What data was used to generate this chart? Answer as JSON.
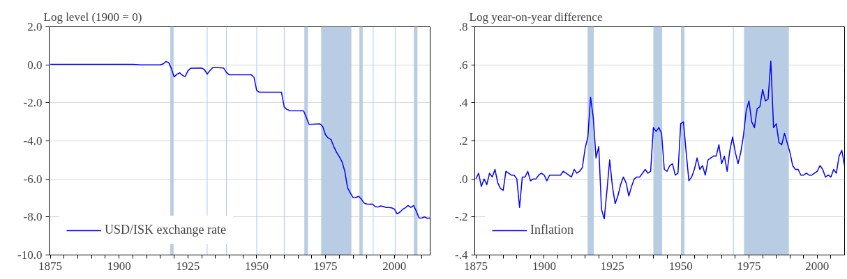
{
  "chart_data": [
    {
      "type": "line",
      "title": "Log level (1900 = 0)",
      "xlim": [
        1874.6,
        2013
      ],
      "ylim": [
        -10,
        2
      ],
      "xticks": [
        {
          "value": 1875,
          "label": "1875"
        },
        {
          "value": 1880,
          "label": null
        },
        {
          "value": 1885,
          "label": null
        },
        {
          "value": 1890,
          "label": null
        },
        {
          "value": 1895,
          "label": null
        },
        {
          "value": 1900,
          "label": "1900"
        },
        {
          "value": 1905,
          "label": null
        },
        {
          "value": 1910,
          "label": null
        },
        {
          "value": 1915,
          "label": null
        },
        {
          "value": 1920,
          "label": null
        },
        {
          "value": 1925,
          "label": "1925"
        },
        {
          "value": 1930,
          "label": null
        },
        {
          "value": 1935,
          "label": null
        },
        {
          "value": 1940,
          "label": null
        },
        {
          "value": 1945,
          "label": null
        },
        {
          "value": 1950,
          "label": "1950"
        },
        {
          "value": 1955,
          "label": null
        },
        {
          "value": 1960,
          "label": null
        },
        {
          "value": 1965,
          "label": null
        },
        {
          "value": 1970,
          "label": null
        },
        {
          "value": 1975,
          "label": "1975"
        },
        {
          "value": 1980,
          "label": null
        },
        {
          "value": 1985,
          "label": null
        },
        {
          "value": 1990,
          "label": null
        },
        {
          "value": 1995,
          "label": null
        },
        {
          "value": 2000,
          "label": "2000"
        },
        {
          "value": 2005,
          "label": null
        },
        {
          "value": 2010,
          "label": null
        }
      ],
      "yticks": [
        {
          "value": 2,
          "label": "2.0"
        },
        {
          "value": 0,
          "label": "0.0"
        },
        {
          "value": -2,
          "label": "-2.0"
        },
        {
          "value": -4,
          "label": "-4.0"
        },
        {
          "value": -6,
          "label": "-6.0"
        },
        {
          "value": -8,
          "label": "-8.0"
        },
        {
          "value": -10,
          "label": "-10.0"
        }
      ],
      "grid": "y",
      "legend": "bottom left",
      "line_style": "solid",
      "bands": [
        {
          "axis": "x",
          "from": 1918.6,
          "to": 1919.8,
          "color": "#b8cce4"
        },
        {
          "axis": "x",
          "from": 1967.3,
          "to": 1968.6,
          "color": "#b8cce4"
        },
        {
          "axis": "x",
          "from": 1973.4,
          "to": 1984.4,
          "color": "#b8cce4"
        },
        {
          "axis": "x",
          "from": 1987.3,
          "to": 1988.5,
          "color": "#b8cce4"
        },
        {
          "axis": "x",
          "from": 2007.1,
          "to": 2008.4,
          "color": "#b8cce4"
        }
      ],
      "ref_lines": [
        {
          "axis": "x",
          "value": 1932,
          "color": "#a6c8ff"
        },
        {
          "axis": "x",
          "value": 1939,
          "color": "#a6c8ff"
        },
        {
          "axis": "x",
          "value": 1950,
          "color": "#a6c8ff"
        },
        {
          "axis": "x",
          "value": 1960,
          "color": "#a6c8ff"
        },
        {
          "axis": "x",
          "value": 1992.3,
          "color": "#a6c8ff"
        },
        {
          "axis": "x",
          "value": 2000.3,
          "color": "#a6c8ff"
        }
      ],
      "series": [
        {
          "name": "USD/ISK exchange rate",
          "color": "#0000ff",
          "x": [
            1875,
            1885,
            1895,
            1905,
            1908,
            1915,
            1916,
            1917,
            1918,
            1919,
            1920,
            1921,
            1922,
            1923,
            1924,
            1925,
            1926,
            1930,
            1931,
            1932,
            1933,
            1934,
            1936,
            1938,
            1939,
            1940,
            1948,
            1949,
            1950,
            1951,
            1959,
            1960,
            1961,
            1962,
            1967,
            1968,
            1969,
            1973,
            1974,
            1975,
            1976,
            1977,
            1978,
            1979,
            1980,
            1981,
            1982,
            1983,
            1984,
            1985,
            1986,
            1987,
            1988,
            1989,
            1990,
            1991,
            1992,
            1993,
            1994,
            1995,
            1996,
            1997,
            1998,
            1999,
            2000,
            2001,
            2002,
            2003,
            2004,
            2005,
            2006,
            2007,
            2008,
            2009,
            2010,
            2011,
            2012,
            2013
          ],
          "values": [
            0.02,
            0.02,
            0.02,
            0.02,
            0.0,
            0.0,
            0.05,
            0.17,
            0.12,
            -0.2,
            -0.63,
            -0.5,
            -0.42,
            -0.55,
            -0.62,
            -0.32,
            -0.18,
            -0.17,
            -0.25,
            -0.49,
            -0.3,
            -0.15,
            -0.15,
            -0.17,
            -0.4,
            -0.52,
            -0.52,
            -0.65,
            -1.35,
            -1.44,
            -1.44,
            -2.22,
            -2.35,
            -2.41,
            -2.42,
            -2.75,
            -3.13,
            -3.1,
            -3.25,
            -3.68,
            -3.85,
            -3.93,
            -4.3,
            -4.6,
            -4.83,
            -5.1,
            -5.6,
            -6.46,
            -6.74,
            -6.98,
            -6.97,
            -6.92,
            -7.05,
            -7.27,
            -7.32,
            -7.33,
            -7.32,
            -7.45,
            -7.48,
            -7.42,
            -7.45,
            -7.5,
            -7.5,
            -7.52,
            -7.58,
            -7.84,
            -7.75,
            -7.6,
            -7.52,
            -7.4,
            -7.5,
            -7.4,
            -7.7,
            -8.06,
            -8.05,
            -8.0,
            -8.07,
            -8.05
          ]
        }
      ]
    },
    {
      "type": "line",
      "title": "Log year-on-year difference",
      "xlim": [
        1874.6,
        2010
      ],
      "ylim": [
        -0.4,
        0.8
      ],
      "xticks": [
        {
          "value": 1875,
          "label": "1875"
        },
        {
          "value": 1880,
          "label": null
        },
        {
          "value": 1885,
          "label": null
        },
        {
          "value": 1890,
          "label": null
        },
        {
          "value": 1895,
          "label": null
        },
        {
          "value": 1900,
          "label": "1900"
        },
        {
          "value": 1905,
          "label": null
        },
        {
          "value": 1910,
          "label": null
        },
        {
          "value": 1915,
          "label": null
        },
        {
          "value": 1920,
          "label": null
        },
        {
          "value": 1925,
          "label": "1925"
        },
        {
          "value": 1930,
          "label": null
        },
        {
          "value": 1935,
          "label": null
        },
        {
          "value": 1940,
          "label": null
        },
        {
          "value": 1945,
          "label": null
        },
        {
          "value": 1950,
          "label": "1950"
        },
        {
          "value": 1955,
          "label": null
        },
        {
          "value": 1960,
          "label": null
        },
        {
          "value": 1965,
          "label": null
        },
        {
          "value": 1970,
          "label": null
        },
        {
          "value": 1975,
          "label": "1975"
        },
        {
          "value": 1980,
          "label": null
        },
        {
          "value": 1985,
          "label": null
        },
        {
          "value": 1990,
          "label": null
        },
        {
          "value": 1995,
          "label": null
        },
        {
          "value": 2000,
          "label": "2000"
        },
        {
          "value": 2005,
          "label": null
        }
      ],
      "yticks": [
        {
          "value": 0.8,
          "label": ".8"
        },
        {
          "value": 0.6,
          "label": ".6"
        },
        {
          "value": 0.4,
          "label": ".4"
        },
        {
          "value": 0.2,
          "label": ".2"
        },
        {
          "value": 0,
          "label": ".0"
        },
        {
          "value": -0.2,
          "label": "-.2"
        },
        {
          "value": -0.4,
          "label": "-.4"
        }
      ],
      "grid": "y",
      "legend": "bottom left",
      "line_style": "solid",
      "bands": [
        {
          "axis": "x",
          "from": 1915.9,
          "to": 1918.2,
          "color": "#b8cce4"
        },
        {
          "axis": "x",
          "from": 1940.0,
          "to": 1943.2,
          "color": "#b8cce4"
        },
        {
          "axis": "x",
          "from": 1950.1,
          "to": 1951.4,
          "color": "#b8cce4"
        },
        {
          "axis": "x",
          "from": 1973.2,
          "to": 1989.6,
          "color": "#b8cce4"
        }
      ],
      "ref_lines": [
        {
          "axis": "x",
          "value": 1969.3,
          "color": "#a6c8ff"
        }
      ],
      "series": [
        {
          "name": "Inflation",
          "color": "#0000ff",
          "x": [
            1875,
            1876,
            1877,
            1878,
            1879,
            1880,
            1881,
            1882,
            1883,
            1884,
            1885,
            1886,
            1887,
            1888,
            1889,
            1890,
            1891,
            1892,
            1893,
            1894,
            1895,
            1896,
            1897,
            1898,
            1899,
            1900,
            1901,
            1902,
            1906,
            1907,
            1908,
            1909,
            1910,
            1911,
            1912,
            1913,
            1914,
            1915,
            1916,
            1917,
            1918,
            1919,
            1920,
            1921,
            1922,
            1923,
            1924,
            1925,
            1926,
            1927,
            1928,
            1929,
            1930,
            1931,
            1932,
            1933,
            1934,
            1935,
            1936,
            1937,
            1938,
            1939,
            1940,
            1941,
            1942,
            1943,
            1944,
            1945,
            1946,
            1947,
            1948,
            1949,
            1950,
            1951,
            1952,
            1953,
            1954,
            1955,
            1956,
            1957,
            1958,
            1959,
            1960,
            1961,
            1962,
            1963,
            1964,
            1965,
            1966,
            1967,
            1968,
            1969,
            1970,
            1971,
            1972,
            1973,
            1974,
            1975,
            1976,
            1977,
            1978,
            1979,
            1980,
            1981,
            1982,
            1983,
            1984,
            1985,
            1986,
            1987,
            1988,
            1989,
            1990,
            1991,
            1992,
            1993,
            1994,
            1995,
            1996,
            1997,
            1998,
            1999,
            2000,
            2001,
            2002,
            2003,
            2004,
            2005,
            2006,
            2007,
            2008,
            2009,
            2010
          ],
          "values": [
            0.0,
            0.03,
            -0.04,
            0.0,
            -0.03,
            0.03,
            0.01,
            0.05,
            -0.02,
            -0.05,
            -0.06,
            0.04,
            0.03,
            0.02,
            0.02,
            0.0,
            -0.15,
            0.01,
            0.01,
            0.04,
            -0.01,
            0.0,
            0.0,
            0.02,
            0.03,
            0.02,
            -0.01,
            0.02,
            0.02,
            0.04,
            0.03,
            0.02,
            0.01,
            0.05,
            0.03,
            0.04,
            0.06,
            0.16,
            0.22,
            0.43,
            0.32,
            0.11,
            0.17,
            -0.16,
            -0.21,
            -0.06,
            0.1,
            -0.04,
            -0.13,
            -0.09,
            -0.03,
            0.01,
            -0.02,
            -0.09,
            -0.04,
            0.0,
            0.01,
            0.01,
            0.03,
            0.05,
            0.03,
            0.04,
            0.27,
            0.25,
            0.27,
            0.24,
            0.05,
            0.04,
            0.07,
            0.08,
            0.02,
            0.03,
            0.29,
            0.3,
            0.14,
            -0.01,
            0.01,
            0.05,
            0.11,
            0.05,
            0.07,
            0.02,
            0.1,
            0.11,
            0.12,
            0.12,
            0.18,
            0.08,
            0.12,
            0.04,
            0.15,
            0.22,
            0.14,
            0.08,
            0.14,
            0.23,
            0.36,
            0.41,
            0.3,
            0.27,
            0.37,
            0.38,
            0.47,
            0.41,
            0.42,
            0.62,
            0.27,
            0.29,
            0.19,
            0.18,
            0.24,
            0.19,
            0.14,
            0.07,
            0.05,
            0.05,
            0.02,
            0.02,
            0.03,
            0.02,
            0.02,
            0.03,
            0.04,
            0.07,
            0.05,
            0.01,
            0.02,
            0.01,
            0.05,
            0.03,
            0.12,
            0.15,
            0.07
          ]
        }
      ]
    }
  ]
}
